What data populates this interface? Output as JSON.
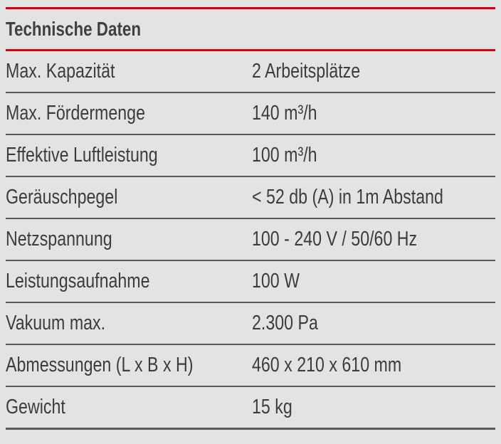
{
  "title": "Technische Daten",
  "accent_color": "#d9000d",
  "rows": [
    {
      "label": "Max. Kapazität",
      "value": "2 Arbeitsplätze"
    },
    {
      "label": "Max. Fördermenge",
      "value": "140 m³/h"
    },
    {
      "label": "Effektive Luftleistung",
      "value": "100 m³/h"
    },
    {
      "label": "Geräuschpegel",
      "value": "< 52 db (A) in 1m Abstand"
    },
    {
      "label": "Netzspannung",
      "value": "100 - 240 V / 50/60 Hz"
    },
    {
      "label": "Leistungsaufnahme",
      "value": "100 W"
    },
    {
      "label": "Vakuum max.",
      "value": "2.300 Pa"
    },
    {
      "label": "Abmessungen (L x B x H)",
      "value": "460 x 210 x 610 mm"
    },
    {
      "label": "Gewicht",
      "value": "15 kg"
    }
  ]
}
